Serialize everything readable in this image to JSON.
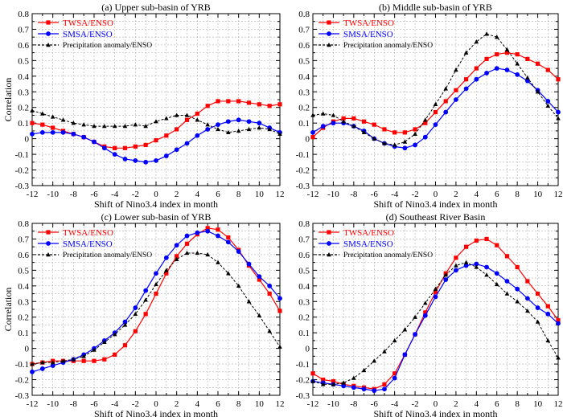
{
  "figure": {
    "legend_labels": [
      "TWSA/ENSO",
      "SMSA/ENSO",
      "Precipitation anomaly/ENSO"
    ],
    "colors": {
      "twsa": "#ff0000",
      "smsa": "#0000ff",
      "precip": "#000000",
      "grid": "#b0b0b0"
    }
  },
  "chart_data": [
    {
      "type": "line",
      "title": "(a) Upper sub-basin of  YRB",
      "xlabel": "Shift of Nino3.4 index in month",
      "ylabel": "Correlation",
      "xlim": [
        -12,
        12
      ],
      "ylim": [
        -0.3,
        0.8
      ],
      "xticks": [
        -12,
        -10,
        -8,
        -6,
        -4,
        -2,
        0,
        2,
        4,
        6,
        8,
        10,
        12
      ],
      "yticks": [
        -0.3,
        -0.2,
        -0.1,
        0,
        0.1,
        0.2,
        0.3,
        0.4,
        0.5,
        0.6,
        0.7,
        0.8
      ],
      "x": [
        -12,
        -11,
        -10,
        -9,
        -8,
        -7,
        -6,
        -5,
        -4,
        -3,
        -2,
        -1,
        0,
        1,
        2,
        3,
        4,
        5,
        6,
        7,
        8,
        9,
        10,
        11,
        12
      ],
      "series": [
        {
          "name": "TWSA/ENSO",
          "values": [
            0.1,
            0.09,
            0.07,
            0.05,
            0.03,
            0.01,
            -0.02,
            -0.05,
            -0.06,
            -0.06,
            -0.05,
            -0.04,
            -0.01,
            0.02,
            0.06,
            0.12,
            0.16,
            0.21,
            0.24,
            0.24,
            0.24,
            0.23,
            0.22,
            0.21,
            0.22
          ]
        },
        {
          "name": "SMSA/ENSO",
          "values": [
            0.03,
            0.04,
            0.04,
            0.04,
            0.03,
            0.01,
            -0.02,
            -0.06,
            -0.1,
            -0.13,
            -0.14,
            -0.15,
            -0.14,
            -0.11,
            -0.07,
            -0.03,
            0.02,
            0.06,
            0.09,
            0.11,
            0.12,
            0.11,
            0.1,
            0.07,
            0.04
          ]
        },
        {
          "name": "Precipitation anomaly/ENSO",
          "values": [
            0.18,
            0.16,
            0.14,
            0.12,
            0.1,
            0.09,
            0.08,
            0.08,
            0.08,
            0.08,
            0.09,
            0.08,
            0.11,
            0.13,
            0.15,
            0.15,
            0.12,
            0.09,
            0.06,
            0.04,
            0.05,
            0.06,
            0.07,
            0.06,
            0.03
          ]
        }
      ]
    },
    {
      "type": "line",
      "title": "(b) Middle sub-basin of  YRB",
      "xlabel": "Shift of Nino3.4 index in month",
      "ylabel": "",
      "xlim": [
        -12,
        12
      ],
      "ylim": [
        -0.3,
        0.8
      ],
      "xticks": [
        -12,
        -10,
        -8,
        -6,
        -4,
        -2,
        0,
        2,
        4,
        6,
        8,
        10,
        12
      ],
      "yticks": [
        -0.3,
        -0.2,
        -0.1,
        0,
        0.1,
        0.2,
        0.3,
        0.4,
        0.5,
        0.6,
        0.7,
        0.8
      ],
      "x": [
        -12,
        -11,
        -10,
        -9,
        -8,
        -7,
        -6,
        -5,
        -4,
        -3,
        -2,
        -1,
        0,
        1,
        2,
        3,
        4,
        5,
        6,
        7,
        8,
        9,
        10,
        11,
        12
      ],
      "series": [
        {
          "name": "TWSA/ENSO",
          "values": [
            0.01,
            0.07,
            0.11,
            0.13,
            0.13,
            0.11,
            0.09,
            0.06,
            0.04,
            0.04,
            0.06,
            0.1,
            0.17,
            0.24,
            0.31,
            0.38,
            0.45,
            0.51,
            0.54,
            0.55,
            0.54,
            0.51,
            0.48,
            0.44,
            0.38
          ]
        },
        {
          "name": "SMSA/ENSO",
          "values": [
            0.04,
            0.08,
            0.1,
            0.1,
            0.08,
            0.05,
            0.0,
            -0.03,
            -0.05,
            -0.06,
            -0.04,
            0.01,
            0.09,
            0.17,
            0.25,
            0.32,
            0.38,
            0.42,
            0.45,
            0.44,
            0.41,
            0.37,
            0.31,
            0.24,
            0.17
          ]
        },
        {
          "name": "Precipitation anomaly/ENSO",
          "values": [
            0.15,
            0.16,
            0.15,
            0.11,
            0.08,
            0.04,
            0.0,
            -0.03,
            -0.04,
            -0.02,
            0.03,
            0.12,
            0.22,
            0.32,
            0.44,
            0.55,
            0.62,
            0.67,
            0.65,
            0.57,
            0.48,
            0.39,
            0.3,
            0.21,
            0.13
          ]
        }
      ]
    },
    {
      "type": "line",
      "title": "(c) Lower sub-basin of  YRB",
      "xlabel": "Shift of Nino3.4 index in month",
      "ylabel": "Correlation",
      "xlim": [
        -12,
        12
      ],
      "ylim": [
        -0.3,
        0.8
      ],
      "xticks": [
        -12,
        -10,
        -8,
        -6,
        -4,
        -2,
        0,
        2,
        4,
        6,
        8,
        10,
        12
      ],
      "yticks": [
        -0.3,
        -0.2,
        -0.1,
        0,
        0.1,
        0.2,
        0.3,
        0.4,
        0.5,
        0.6,
        0.7,
        0.8
      ],
      "x": [
        -12,
        -11,
        -10,
        -9,
        -8,
        -7,
        -6,
        -5,
        -4,
        -3,
        -2,
        -1,
        0,
        1,
        2,
        3,
        4,
        5,
        6,
        7,
        8,
        9,
        10,
        11,
        12
      ],
      "series": [
        {
          "name": "TWSA/ENSO",
          "values": [
            -0.1,
            -0.09,
            -0.08,
            -0.08,
            -0.08,
            -0.08,
            -0.08,
            -0.07,
            -0.04,
            0.02,
            0.11,
            0.22,
            0.35,
            0.48,
            0.59,
            0.67,
            0.73,
            0.77,
            0.76,
            0.71,
            0.63,
            0.53,
            0.44,
            0.35,
            0.24
          ]
        },
        {
          "name": "SMSA/ENSO",
          "values": [
            -0.15,
            -0.13,
            -0.11,
            -0.09,
            -0.07,
            -0.04,
            0.0,
            0.05,
            0.1,
            0.17,
            0.26,
            0.37,
            0.48,
            0.58,
            0.66,
            0.72,
            0.74,
            0.75,
            0.72,
            0.68,
            0.62,
            0.54,
            0.46,
            0.4,
            0.32
          ]
        },
        {
          "name": "Precipitation anomaly/ENSO",
          "values": [
            -0.1,
            -0.09,
            -0.09,
            -0.08,
            -0.07,
            -0.05,
            -0.01,
            0.04,
            0.09,
            0.15,
            0.22,
            0.31,
            0.41,
            0.5,
            0.57,
            0.61,
            0.61,
            0.6,
            0.55,
            0.48,
            0.4,
            0.3,
            0.21,
            0.11,
            0.01
          ]
        }
      ]
    },
    {
      "type": "line",
      "title": "(d) Southeast River Basin",
      "xlabel": "Shift of Nino3.4 index in month",
      "ylabel": "",
      "xlim": [
        -12,
        12
      ],
      "ylim": [
        -0.3,
        0.8
      ],
      "xticks": [
        -12,
        -10,
        -8,
        -6,
        -4,
        -2,
        0,
        2,
        4,
        6,
        8,
        10,
        12
      ],
      "yticks": [
        -0.3,
        -0.2,
        -0.1,
        0,
        0.1,
        0.2,
        0.3,
        0.4,
        0.5,
        0.6,
        0.7,
        0.8
      ],
      "x": [
        -12,
        -11,
        -10,
        -9,
        -8,
        -7,
        -6,
        -5,
        -4,
        -3,
        -2,
        -1,
        0,
        1,
        2,
        3,
        4,
        5,
        6,
        7,
        8,
        9,
        10,
        11,
        12
      ],
      "series": [
        {
          "name": "TWSA/ENSO",
          "values": [
            -0.16,
            -0.2,
            -0.21,
            -0.23,
            -0.24,
            -0.25,
            -0.26,
            -0.23,
            -0.16,
            -0.04,
            0.09,
            0.23,
            0.36,
            0.48,
            0.58,
            0.65,
            0.69,
            0.7,
            0.66,
            0.59,
            0.52,
            0.43,
            0.35,
            0.27,
            0.18
          ]
        },
        {
          "name": "SMSA/ENSO",
          "values": [
            -0.21,
            -0.22,
            -0.23,
            -0.24,
            -0.25,
            -0.26,
            -0.27,
            -0.26,
            -0.19,
            -0.04,
            0.09,
            0.21,
            0.33,
            0.44,
            0.5,
            0.53,
            0.54,
            0.52,
            0.48,
            0.43,
            0.38,
            0.32,
            0.26,
            0.22,
            0.16
          ]
        },
        {
          "name": "Precipitation anomaly/ENSO",
          "values": [
            -0.21,
            -0.23,
            -0.23,
            -0.22,
            -0.19,
            -0.14,
            -0.08,
            -0.02,
            0.05,
            0.12,
            0.2,
            0.29,
            0.38,
            0.47,
            0.53,
            0.55,
            0.52,
            0.47,
            0.41,
            0.35,
            0.3,
            0.24,
            0.17,
            0.05,
            -0.06
          ]
        }
      ]
    }
  ]
}
